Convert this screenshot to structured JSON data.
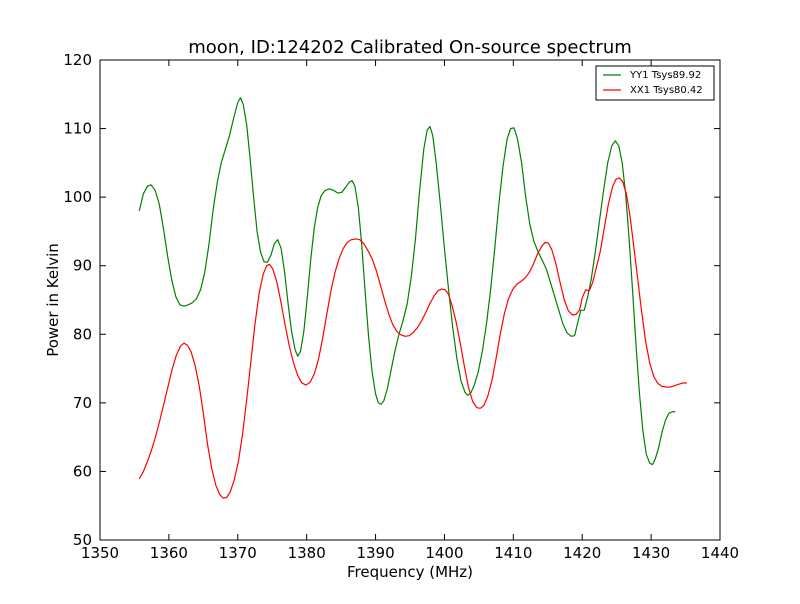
{
  "chart_data": {
    "type": "line",
    "title": "moon, ID:124202 Calibrated On-source spectrum",
    "xlabel": "Frequency (MHz)",
    "ylabel": "Power in Kelvin",
    "xlim": [
      1350,
      1440
    ],
    "ylim": [
      50,
      120
    ],
    "xticks": [
      1350,
      1360,
      1370,
      1380,
      1390,
      1400,
      1410,
      1420,
      1430,
      1440
    ],
    "yticks": [
      50,
      60,
      70,
      80,
      90,
      100,
      110,
      120
    ],
    "grid": false,
    "legend_position": "top-right",
    "series": [
      {
        "name": "YY1 Tsys89.92",
        "color": "#008000",
        "points": [
          [
            1355.7,
            98.0
          ],
          [
            1356.3,
            100.5
          ],
          [
            1356.9,
            101.6
          ],
          [
            1357.4,
            101.8
          ],
          [
            1358.0,
            101.0
          ],
          [
            1358.6,
            99.0
          ],
          [
            1359.2,
            95.5
          ],
          [
            1359.8,
            91.5
          ],
          [
            1360.4,
            88.0
          ],
          [
            1361.0,
            85.5
          ],
          [
            1361.6,
            84.3
          ],
          [
            1362.2,
            84.1
          ],
          [
            1362.8,
            84.3
          ],
          [
            1363.4,
            84.6
          ],
          [
            1364.0,
            85.2
          ],
          [
            1364.6,
            86.5
          ],
          [
            1365.2,
            89.0
          ],
          [
            1365.8,
            93.0
          ],
          [
            1366.4,
            98.0
          ],
          [
            1367.0,
            102.0
          ],
          [
            1367.6,
            105.0
          ],
          [
            1368.2,
            107.0
          ],
          [
            1368.8,
            109.0
          ],
          [
            1369.4,
            111.5
          ],
          [
            1370.0,
            113.8
          ],
          [
            1370.4,
            114.5
          ],
          [
            1370.8,
            113.5
          ],
          [
            1371.3,
            110.5
          ],
          [
            1371.8,
            105.5
          ],
          [
            1372.3,
            100.0
          ],
          [
            1372.8,
            95.0
          ],
          [
            1373.3,
            92.0
          ],
          [
            1373.8,
            90.6
          ],
          [
            1374.3,
            90.5
          ],
          [
            1374.8,
            91.5
          ],
          [
            1375.3,
            93.2
          ],
          [
            1375.8,
            93.8
          ],
          [
            1376.3,
            92.5
          ],
          [
            1376.8,
            89.0
          ],
          [
            1377.3,
            84.5
          ],
          [
            1377.8,
            80.5
          ],
          [
            1378.3,
            77.8
          ],
          [
            1378.7,
            76.8
          ],
          [
            1379.1,
            77.5
          ],
          [
            1379.6,
            80.5
          ],
          [
            1380.1,
            85.5
          ],
          [
            1380.6,
            91.0
          ],
          [
            1381.1,
            95.5
          ],
          [
            1381.6,
            98.5
          ],
          [
            1382.1,
            100.2
          ],
          [
            1382.7,
            101.0
          ],
          [
            1383.3,
            101.2
          ],
          [
            1383.9,
            101.0
          ],
          [
            1384.5,
            100.6
          ],
          [
            1385.1,
            100.7
          ],
          [
            1385.7,
            101.5
          ],
          [
            1386.2,
            102.2
          ],
          [
            1386.6,
            102.4
          ],
          [
            1387.0,
            101.6
          ],
          [
            1387.5,
            98.5
          ],
          [
            1388.0,
            93.0
          ],
          [
            1388.5,
            86.0
          ],
          [
            1389.0,
            79.5
          ],
          [
            1389.5,
            74.5
          ],
          [
            1390.0,
            71.3
          ],
          [
            1390.4,
            70.0
          ],
          [
            1390.8,
            69.8
          ],
          [
            1391.2,
            70.3
          ],
          [
            1391.7,
            72.0
          ],
          [
            1392.2,
            74.5
          ],
          [
            1392.8,
            77.5
          ],
          [
            1393.4,
            80.0
          ],
          [
            1394.0,
            82.0
          ],
          [
            1394.6,
            84.5
          ],
          [
            1395.2,
            88.5
          ],
          [
            1395.8,
            94.0
          ],
          [
            1396.4,
            101.0
          ],
          [
            1397.0,
            107.0
          ],
          [
            1397.5,
            109.8
          ],
          [
            1397.9,
            110.3
          ],
          [
            1398.3,
            109.0
          ],
          [
            1398.8,
            105.0
          ],
          [
            1399.4,
            99.0
          ],
          [
            1400.0,
            92.5
          ],
          [
            1400.6,
            86.5
          ],
          [
            1401.2,
            81.0
          ],
          [
            1401.8,
            76.5
          ],
          [
            1402.4,
            73.2
          ],
          [
            1403.0,
            71.5
          ],
          [
            1403.4,
            71.1
          ],
          [
            1403.8,
            71.4
          ],
          [
            1404.3,
            72.5
          ],
          [
            1404.9,
            74.5
          ],
          [
            1405.5,
            77.5
          ],
          [
            1406.1,
            81.5
          ],
          [
            1406.7,
            86.5
          ],
          [
            1407.3,
            92.5
          ],
          [
            1407.9,
            99.0
          ],
          [
            1408.5,
            104.5
          ],
          [
            1409.1,
            108.5
          ],
          [
            1409.6,
            110.0
          ],
          [
            1410.1,
            110.1
          ],
          [
            1410.6,
            108.5
          ],
          [
            1411.2,
            105.0
          ],
          [
            1411.8,
            100.0
          ],
          [
            1412.4,
            96.0
          ],
          [
            1413.0,
            93.5
          ],
          [
            1413.6,
            92.0
          ],
          [
            1414.2,
            90.8
          ],
          [
            1414.8,
            89.5
          ],
          [
            1415.4,
            87.5
          ],
          [
            1416.0,
            85.5
          ],
          [
            1416.6,
            83.5
          ],
          [
            1417.2,
            81.5
          ],
          [
            1417.8,
            80.2
          ],
          [
            1418.4,
            79.7
          ],
          [
            1418.9,
            79.8
          ],
          [
            1419.3,
            81.5
          ],
          [
            1419.8,
            83.5
          ],
          [
            1420.3,
            83.5
          ],
          [
            1420.8,
            85.5
          ],
          [
            1421.3,
            88.0
          ],
          [
            1421.9,
            92.0
          ],
          [
            1422.5,
            96.5
          ],
          [
            1423.1,
            101.0
          ],
          [
            1423.7,
            105.0
          ],
          [
            1424.3,
            107.5
          ],
          [
            1424.8,
            108.2
          ],
          [
            1425.3,
            107.5
          ],
          [
            1425.8,
            105.0
          ],
          [
            1426.3,
            100.5
          ],
          [
            1426.8,
            94.0
          ],
          [
            1427.3,
            86.5
          ],
          [
            1427.8,
            78.5
          ],
          [
            1428.3,
            71.5
          ],
          [
            1428.8,
            66.0
          ],
          [
            1429.3,
            62.5
          ],
          [
            1429.8,
            61.2
          ],
          [
            1430.2,
            61.0
          ],
          [
            1430.6,
            61.8
          ],
          [
            1431.1,
            63.5
          ],
          [
            1431.6,
            65.8
          ],
          [
            1432.1,
            67.5
          ],
          [
            1432.6,
            68.5
          ],
          [
            1433.1,
            68.7
          ],
          [
            1433.5,
            68.7
          ]
        ]
      },
      {
        "name": "XX1 Tsys80.42",
        "color": "#ff0000",
        "points": [
          [
            1355.7,
            58.9
          ],
          [
            1356.3,
            60.0
          ],
          [
            1356.9,
            61.5
          ],
          [
            1357.5,
            63.2
          ],
          [
            1358.1,
            65.2
          ],
          [
            1358.7,
            67.5
          ],
          [
            1359.3,
            70.0
          ],
          [
            1359.9,
            72.5
          ],
          [
            1360.5,
            75.0
          ],
          [
            1361.1,
            77.0
          ],
          [
            1361.7,
            78.3
          ],
          [
            1362.2,
            78.7
          ],
          [
            1362.7,
            78.4
          ],
          [
            1363.2,
            77.5
          ],
          [
            1363.8,
            75.5
          ],
          [
            1364.4,
            72.5
          ],
          [
            1365.0,
            68.5
          ],
          [
            1365.6,
            64.0
          ],
          [
            1366.2,
            60.5
          ],
          [
            1366.8,
            58.0
          ],
          [
            1367.4,
            56.6
          ],
          [
            1367.9,
            56.1
          ],
          [
            1368.4,
            56.2
          ],
          [
            1368.9,
            57.0
          ],
          [
            1369.5,
            58.8
          ],
          [
            1370.1,
            61.5
          ],
          [
            1370.7,
            65.5
          ],
          [
            1371.3,
            70.5
          ],
          [
            1371.9,
            76.0
          ],
          [
            1372.5,
            81.5
          ],
          [
            1373.1,
            86.0
          ],
          [
            1373.7,
            88.8
          ],
          [
            1374.2,
            90.0
          ],
          [
            1374.6,
            90.2
          ],
          [
            1375.1,
            89.5
          ],
          [
            1375.7,
            87.5
          ],
          [
            1376.3,
            84.5
          ],
          [
            1376.9,
            81.2
          ],
          [
            1377.5,
            78.2
          ],
          [
            1378.1,
            75.8
          ],
          [
            1378.7,
            74.0
          ],
          [
            1379.3,
            72.9
          ],
          [
            1379.9,
            72.6
          ],
          [
            1380.5,
            73.0
          ],
          [
            1381.1,
            74.2
          ],
          [
            1381.7,
            76.3
          ],
          [
            1382.3,
            79.3
          ],
          [
            1382.9,
            82.8
          ],
          [
            1383.5,
            86.2
          ],
          [
            1384.1,
            89.0
          ],
          [
            1384.7,
            91.0
          ],
          [
            1385.3,
            92.5
          ],
          [
            1385.9,
            93.4
          ],
          [
            1386.5,
            93.8
          ],
          [
            1387.1,
            93.9
          ],
          [
            1387.7,
            93.8
          ],
          [
            1388.3,
            93.2
          ],
          [
            1388.9,
            92.2
          ],
          [
            1389.5,
            91.0
          ],
          [
            1390.1,
            89.3
          ],
          [
            1390.7,
            87.2
          ],
          [
            1391.3,
            85.0
          ],
          [
            1391.9,
            83.0
          ],
          [
            1392.5,
            81.4
          ],
          [
            1393.1,
            80.4
          ],
          [
            1393.7,
            79.9
          ],
          [
            1394.3,
            79.7
          ],
          [
            1394.9,
            79.8
          ],
          [
            1395.5,
            80.3
          ],
          [
            1396.1,
            81.0
          ],
          [
            1396.7,
            82.0
          ],
          [
            1397.3,
            83.2
          ],
          [
            1397.9,
            84.5
          ],
          [
            1398.5,
            85.6
          ],
          [
            1399.1,
            86.4
          ],
          [
            1399.6,
            86.6
          ],
          [
            1400.1,
            86.5
          ],
          [
            1400.6,
            85.8
          ],
          [
            1401.1,
            84.2
          ],
          [
            1401.7,
            81.8
          ],
          [
            1402.3,
            78.7
          ],
          [
            1402.9,
            75.3
          ],
          [
            1403.5,
            72.2
          ],
          [
            1404.1,
            70.2
          ],
          [
            1404.7,
            69.3
          ],
          [
            1405.2,
            69.2
          ],
          [
            1405.7,
            69.6
          ],
          [
            1406.3,
            71.0
          ],
          [
            1406.9,
            73.3
          ],
          [
            1407.5,
            76.5
          ],
          [
            1408.1,
            80.0
          ],
          [
            1408.7,
            83.0
          ],
          [
            1409.3,
            85.2
          ],
          [
            1409.9,
            86.5
          ],
          [
            1410.5,
            87.3
          ],
          [
            1411.1,
            87.7
          ],
          [
            1411.7,
            88.2
          ],
          [
            1412.3,
            89.0
          ],
          [
            1412.9,
            90.2
          ],
          [
            1413.5,
            91.7
          ],
          [
            1414.1,
            92.8
          ],
          [
            1414.6,
            93.4
          ],
          [
            1415.1,
            93.3
          ],
          [
            1415.6,
            92.3
          ],
          [
            1416.2,
            90.2
          ],
          [
            1416.8,
            87.5
          ],
          [
            1417.4,
            85.0
          ],
          [
            1418.0,
            83.4
          ],
          [
            1418.6,
            82.8
          ],
          [
            1419.1,
            82.9
          ],
          [
            1419.6,
            83.5
          ],
          [
            1420.0,
            85.3
          ],
          [
            1420.5,
            86.5
          ],
          [
            1421.0,
            86.3
          ],
          [
            1421.5,
            87.5
          ],
          [
            1422.0,
            89.5
          ],
          [
            1422.6,
            92.0
          ],
          [
            1423.2,
            95.5
          ],
          [
            1423.8,
            99.0
          ],
          [
            1424.4,
            101.5
          ],
          [
            1424.9,
            102.6
          ],
          [
            1425.4,
            102.8
          ],
          [
            1425.9,
            102.2
          ],
          [
            1426.4,
            100.5
          ],
          [
            1426.9,
            97.5
          ],
          [
            1427.4,
            93.5
          ],
          [
            1428.0,
            88.5
          ],
          [
            1428.6,
            83.5
          ],
          [
            1429.2,
            79.0
          ],
          [
            1429.8,
            75.8
          ],
          [
            1430.4,
            73.8
          ],
          [
            1431.0,
            72.8
          ],
          [
            1431.6,
            72.4
          ],
          [
            1432.2,
            72.3
          ],
          [
            1432.8,
            72.3
          ],
          [
            1433.4,
            72.5
          ],
          [
            1434.0,
            72.7
          ],
          [
            1434.6,
            72.9
          ],
          [
            1435.2,
            72.9
          ]
        ]
      }
    ]
  }
}
